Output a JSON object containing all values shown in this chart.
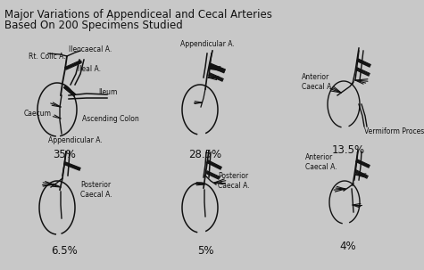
{
  "title_line1": "Major Variations of Appendiceal and Cecal Arteries",
  "title_line2": "Based On 200 Specimens Studied",
  "background_color": "#c8c8c8",
  "text_color": "#111111",
  "line_color": "#111111",
  "percentages": [
    "35%",
    "28.5%",
    "13.5%",
    "6.5%",
    "5%",
    "4%"
  ],
  "pct_fontsize": 8.5,
  "label_fontsize": 5.5,
  "title_fontsize": 8.5,
  "title_fontsize2": 8.5
}
